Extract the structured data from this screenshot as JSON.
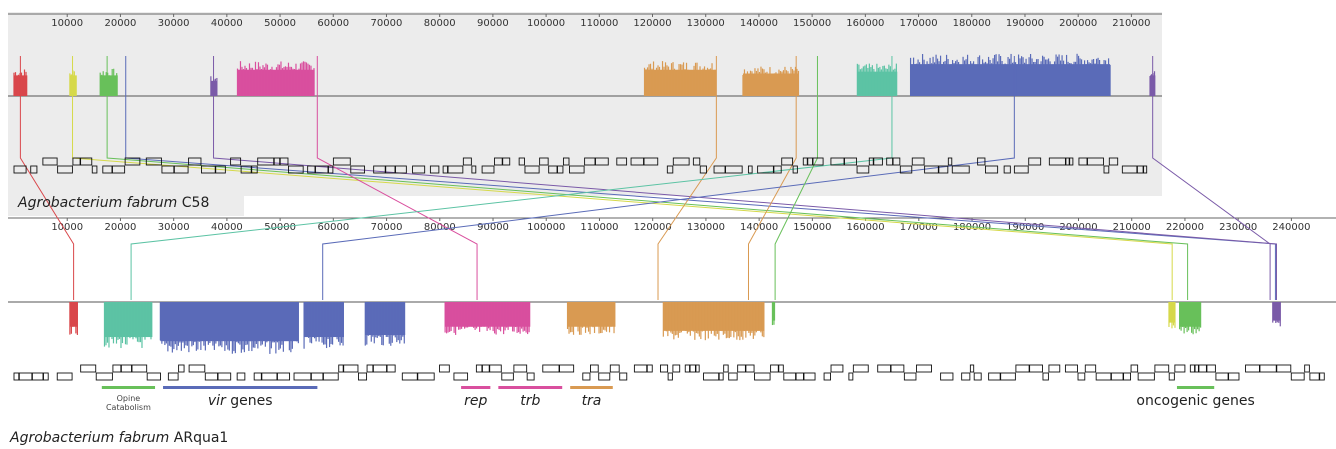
{
  "colors": {
    "panel_top": "#ececec",
    "panel_bottom": "#ffffff",
    "axis": "#666666",
    "red": "#d9474b",
    "yellow": "#d6d94a",
    "green": "#68c05a",
    "blue": "#5a6bb8",
    "purple": "#7a5aa8",
    "magenta": "#d94f9e",
    "orange": "#d99a52",
    "teal": "#5cc3a4"
  },
  "genomes": [
    {
      "id": "c58",
      "label_italic": "Agrobacterium fabrum",
      "label_rest": " C58",
      "axis_max": 215000,
      "ticks": [
        "10000",
        "20000",
        "30000",
        "40000",
        "50000",
        "60000",
        "70000",
        "80000",
        "90000",
        "100000",
        "110000",
        "120000",
        "130000",
        "140000",
        "150000",
        "160000",
        "170000",
        "180000",
        "190000",
        "200000",
        "210000"
      ],
      "blocks": [
        {
          "color": "red",
          "start": 0,
          "end": 2500,
          "height": 0.55
        },
        {
          "color": "yellow",
          "start": 10500,
          "end": 11800,
          "height": 0.55
        },
        {
          "color": "green",
          "start": 16200,
          "end": 19500,
          "height": 0.55
        },
        {
          "color": "purple",
          "start": 37000,
          "end": 38200,
          "height": 0.4
        },
        {
          "color": "magenta",
          "start": 42000,
          "end": 56500,
          "height": 0.7
        },
        {
          "color": "orange",
          "start": 118500,
          "end": 132000,
          "height": 0.7
        },
        {
          "color": "orange",
          "start": 137000,
          "end": 147500,
          "height": 0.6
        },
        {
          "color": "teal",
          "start": 158500,
          "end": 166000,
          "height": 0.65
        },
        {
          "color": "blue",
          "start": 168500,
          "end": 206000,
          "height": 0.85
        },
        {
          "color": "purple",
          "start": 213500,
          "end": 214500,
          "height": 0.55
        }
      ]
    },
    {
      "id": "arqua1",
      "label_italic": "Agrobacterium fabrum",
      "label_rest": " ARqua1",
      "axis_max": 245000,
      "ticks": [
        "10000",
        "20000",
        "30000",
        "40000",
        "50000",
        "60000",
        "70000",
        "80000",
        "90000",
        "100000",
        "110000",
        "120000",
        "130000",
        "140000",
        "150000",
        "160000",
        "170000",
        "180000",
        "190000",
        "200000",
        "210000",
        "220000",
        "230000",
        "240000"
      ],
      "blocks": [
        {
          "color": "red",
          "start": 10500,
          "end": 12000,
          "height": 0.6
        },
        {
          "color": "teal",
          "start": 17000,
          "end": 26000,
          "height": 0.85
        },
        {
          "color": "blue",
          "start": 27500,
          "end": 53500,
          "height": 0.95
        },
        {
          "color": "blue",
          "start": 54500,
          "end": 62000,
          "height": 0.85
        },
        {
          "color": "blue",
          "start": 66000,
          "end": 73500,
          "height": 0.8
        },
        {
          "color": "magenta",
          "start": 81000,
          "end": 97000,
          "height": 0.6
        },
        {
          "color": "orange",
          "start": 104000,
          "end": 113000,
          "height": 0.6
        },
        {
          "color": "orange",
          "start": 122000,
          "end": 141000,
          "height": 0.7
        },
        {
          "color": "green",
          "start": 142500,
          "end": 143000,
          "height": 0.45
        },
        {
          "color": "yellow",
          "start": 217000,
          "end": 218200,
          "height": 0.5
        },
        {
          "color": "green",
          "start": 219000,
          "end": 223000,
          "height": 0.6
        },
        {
          "color": "purple",
          "start": 236500,
          "end": 238000,
          "height": 0.45
        }
      ]
    }
  ],
  "connections": [
    {
      "color": "red",
      "from": 1200,
      "to": 11200
    },
    {
      "color": "yellow",
      "from": 11000,
      "to": 217600
    },
    {
      "color": "green",
      "from": 17500,
      "to": 220500
    },
    {
      "color": "blue",
      "from": 21000,
      "to": 237000
    },
    {
      "color": "purple",
      "from": 37500,
      "to": 237200
    },
    {
      "color": "magenta",
      "from": 57000,
      "to": 87000
    },
    {
      "color": "orange",
      "from": 132000,
      "to": 121000
    },
    {
      "color": "orange",
      "from": 147000,
      "to": 138000
    },
    {
      "color": "teal",
      "from": 165000,
      "to": 22000
    },
    {
      "color": "blue",
      "from": 188000,
      "to": 58000
    },
    {
      "color": "purple",
      "from": 214000,
      "to": 236000
    },
    {
      "color": "green",
      "from": 151000,
      "to": 143000
    }
  ],
  "annotations": [
    {
      "color": "green",
      "start": 16500,
      "end": 26500,
      "label": "Opine",
      "label2": "Catabolism",
      "small": true,
      "italic": false
    },
    {
      "color": "blue",
      "start": 28000,
      "end": 57000,
      "label": "vir",
      "label_rest": " genes",
      "small": false,
      "italic": true
    },
    {
      "color": "magenta",
      "start": 84000,
      "end": 89500,
      "label": "rep",
      "small": false,
      "italic": true
    },
    {
      "color": "magenta",
      "start": 91000,
      "end": 103000,
      "label": "trb",
      "small": false,
      "italic": true
    },
    {
      "color": "orange",
      "start": 104500,
      "end": 112500,
      "label": "tra",
      "small": false,
      "italic": true
    },
    {
      "color": "green",
      "start": 218500,
      "end": 225500,
      "label": "oncogenic genes",
      "small": false,
      "italic": false
    }
  ]
}
